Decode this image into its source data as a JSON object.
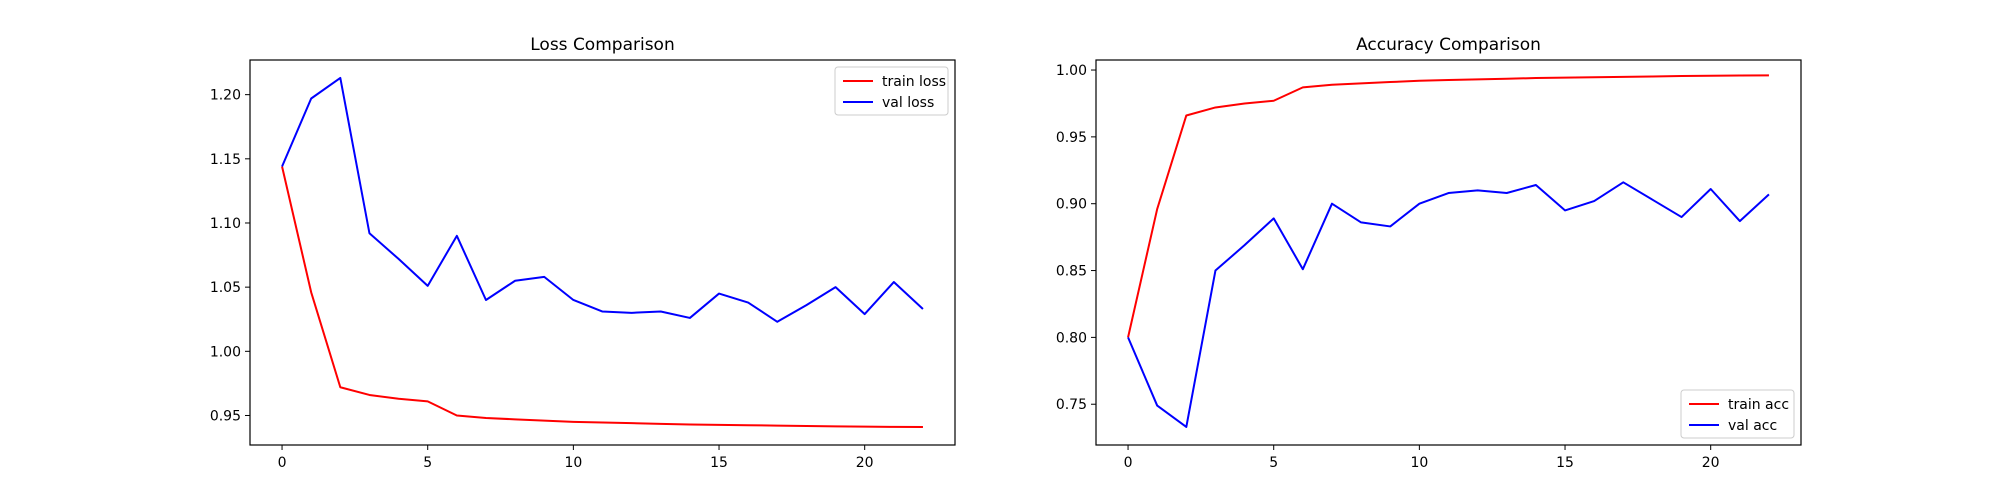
{
  "colors": {
    "train": "#ff0000",
    "val": "#0000ff"
  },
  "chart_data": [
    {
      "type": "line",
      "title": "Loss Comparison",
      "xlabel": "",
      "ylabel": "",
      "x": [
        0,
        1,
        2,
        3,
        4,
        5,
        6,
        7,
        8,
        9,
        10,
        11,
        12,
        13,
        14,
        15,
        16,
        17,
        18,
        19,
        20,
        21,
        22
      ],
      "xlim": [
        -1.1,
        23.1
      ],
      "ylim": [
        0.927,
        1.227
      ],
      "xticks": [
        0,
        5,
        10,
        15,
        20
      ],
      "yticks": [
        "0.95",
        "1.00",
        "1.05",
        "1.10",
        "1.15",
        "1.20"
      ],
      "legend": "top-right",
      "grid": false,
      "series": [
        {
          "name": "train loss",
          "color": "#ff0000",
          "values": [
            1.144,
            1.046,
            0.972,
            0.966,
            0.963,
            0.961,
            0.95,
            0.948,
            0.947,
            0.946,
            0.945,
            0.9445,
            0.944,
            0.9435,
            0.943,
            0.9427,
            0.9424,
            0.9421,
            0.9418,
            0.9415,
            0.9413,
            0.9411,
            0.941
          ]
        },
        {
          "name": "val loss",
          "color": "#0000ff",
          "values": [
            1.144,
            1.197,
            1.213,
            1.092,
            1.072,
            1.051,
            1.09,
            1.04,
            1.055,
            1.058,
            1.04,
            1.031,
            1.03,
            1.031,
            1.026,
            1.045,
            1.038,
            1.023,
            1.036,
            1.05,
            1.029,
            1.054,
            1.033
          ]
        }
      ]
    },
    {
      "type": "line",
      "title": "Accuracy Comparison",
      "xlabel": "",
      "ylabel": "",
      "x": [
        0,
        1,
        2,
        3,
        4,
        5,
        6,
        7,
        8,
        9,
        10,
        11,
        12,
        13,
        14,
        15,
        16,
        17,
        18,
        19,
        20,
        21,
        22
      ],
      "xlim": [
        -1.1,
        23.1
      ],
      "ylim": [
        0.7195,
        1.0075
      ],
      "xticks": [
        0,
        5,
        10,
        15,
        20
      ],
      "yticks": [
        "0.75",
        "0.80",
        "0.85",
        "0.90",
        "0.95",
        "1.00"
      ],
      "legend": "bottom-right",
      "grid": false,
      "series": [
        {
          "name": "train acc",
          "color": "#ff0000",
          "values": [
            0.8,
            0.896,
            0.966,
            0.972,
            0.975,
            0.977,
            0.987,
            0.989,
            0.99,
            0.991,
            0.992,
            0.9925,
            0.993,
            0.9935,
            0.994,
            0.9943,
            0.9946,
            0.9949,
            0.9952,
            0.9955,
            0.9957,
            0.9959,
            0.996
          ]
        },
        {
          "name": "val acc",
          "color": "#0000ff",
          "values": [
            0.8,
            0.749,
            0.733,
            0.85,
            0.869,
            0.889,
            0.851,
            0.9,
            0.886,
            0.883,
            0.9,
            0.908,
            0.91,
            0.908,
            0.914,
            0.895,
            0.902,
            0.916,
            0.903,
            0.89,
            0.911,
            0.887,
            0.907
          ]
        }
      ]
    }
  ]
}
